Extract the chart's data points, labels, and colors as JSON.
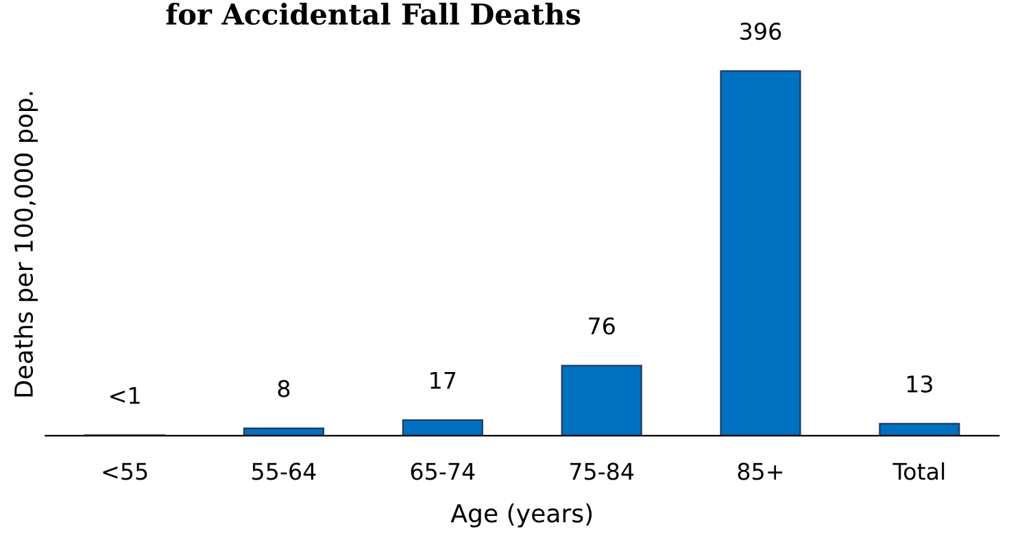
{
  "chart_data": {
    "type": "bar",
    "title": "for Accidental Fall Deaths",
    "xlabel": "Age (years)",
    "ylabel": "Deaths per 100,000 pop.",
    "categories": [
      "<55",
      "55-64",
      "65-74",
      "75-84",
      "85+",
      "Total"
    ],
    "values": [
      0.5,
      8,
      17,
      76,
      396,
      13
    ],
    "value_labels": [
      "<1",
      "8",
      "17",
      "76",
      "396",
      "13"
    ],
    "color": "#0070c0",
    "grid": false,
    "legend": false
  }
}
